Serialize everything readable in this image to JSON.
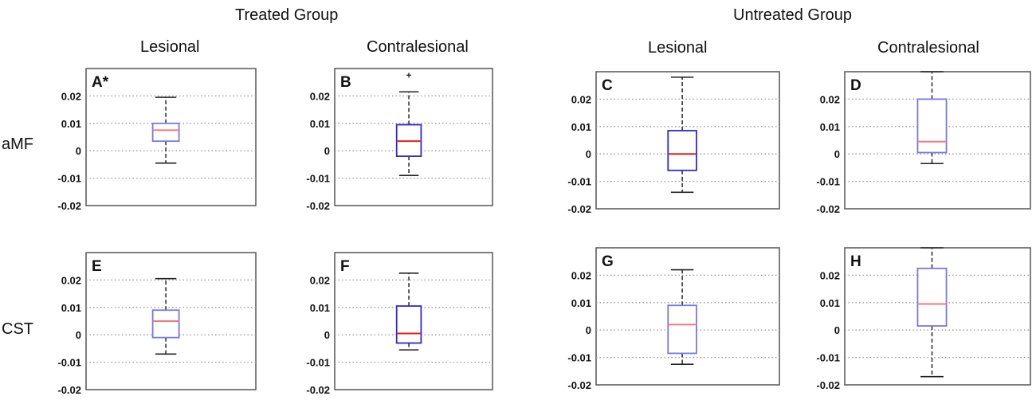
{
  "headers": {
    "treated_group": "Treated Group",
    "untreated_group": "Untreated Group",
    "treated_lesional": "Lesional",
    "treated_contralesional": "Contralesional",
    "untreated_lesional": "Lesional",
    "untreated_contralesional": "Contralesional"
  },
  "rows": {
    "amf": "aMF",
    "cst": "CST"
  },
  "colors": {
    "box_edge": "#2a2ad6",
    "median": "#e02020",
    "whisker": "#333333",
    "grid": "#999999",
    "frame": "#555555"
  },
  "chart_data": [
    {
      "panel": "A*",
      "group": "Treated",
      "side": "Lesional",
      "region": "aMF",
      "type": "box",
      "ylim": [
        -0.02,
        0.03
      ],
      "yticks": [
        -0.02,
        -0.01,
        0,
        0.01,
        0.02
      ],
      "ytick_labels": [
        "-0.02",
        "-0.01",
        "0",
        "0.01",
        "0.02"
      ],
      "whisker_low": -0.0045,
      "q1": 0.0035,
      "median": 0.0075,
      "q3": 0.01,
      "whisker_high": 0.0195,
      "outliers": [],
      "style": "light"
    },
    {
      "panel": "B",
      "group": "Treated",
      "side": "Contralesional",
      "region": "aMF",
      "type": "box",
      "ylim": [
        -0.02,
        0.03
      ],
      "yticks": [
        -0.02,
        -0.01,
        0,
        0.01,
        0.02
      ],
      "ytick_labels": [
        "-0.02",
        "-0.01",
        "0",
        "0.01",
        "0.02"
      ],
      "whisker_low": -0.009,
      "q1": -0.002,
      "median": 0.0035,
      "q3": 0.0095,
      "whisker_high": 0.0215,
      "outliers": [
        0.0275
      ],
      "style": "normal"
    },
    {
      "panel": "C",
      "group": "Untreated",
      "side": "Lesional",
      "region": "aMF",
      "type": "box",
      "ylim": [
        -0.02,
        0.03
      ],
      "yticks": [
        -0.02,
        -0.01,
        0,
        0.01,
        0.02
      ],
      "ytick_labels": [
        "-0.02",
        "-0.01",
        "0",
        "0.01",
        "0.02"
      ],
      "whisker_low": -0.014,
      "q1": -0.006,
      "median": 0.0,
      "q3": 0.0085,
      "whisker_high": 0.028,
      "outliers": [],
      "style": "normal"
    },
    {
      "panel": "D",
      "group": "Untreated",
      "side": "Contralesional",
      "region": "aMF",
      "type": "box",
      "ylim": [
        -0.02,
        0.03
      ],
      "yticks": [
        -0.02,
        -0.01,
        0,
        0.01,
        0.02
      ],
      "ytick_labels": [
        "-0.02",
        "-0.01",
        "0",
        "0.01",
        "0.02"
      ],
      "whisker_low": -0.0035,
      "q1": 0.0005,
      "median": 0.0045,
      "q3": 0.02,
      "whisker_high": 0.03,
      "outliers": [],
      "style": "light"
    },
    {
      "panel": "E",
      "group": "Treated",
      "side": "Lesional",
      "region": "CST",
      "type": "box",
      "ylim": [
        -0.02,
        0.03
      ],
      "yticks": [
        -0.02,
        -0.01,
        0,
        0.01,
        0.02
      ],
      "ytick_labels": [
        "-0.02",
        "-0.01",
        "0",
        "0.01",
        "0.02"
      ],
      "whisker_low": -0.007,
      "q1": -0.001,
      "median": 0.005,
      "q3": 0.009,
      "whisker_high": 0.0205,
      "outliers": [],
      "style": "light"
    },
    {
      "panel": "F",
      "group": "Treated",
      "side": "Contralesional",
      "region": "CST",
      "type": "box",
      "ylim": [
        -0.02,
        0.03
      ],
      "yticks": [
        -0.02,
        -0.01,
        0,
        0.01,
        0.02
      ],
      "ytick_labels": [
        "-0.02",
        "-0.01",
        "0",
        "0.01",
        "0.02"
      ],
      "whisker_low": -0.0055,
      "q1": -0.003,
      "median": 0.0005,
      "q3": 0.0105,
      "whisker_high": 0.0225,
      "outliers": [],
      "style": "normal"
    },
    {
      "panel": "G",
      "group": "Untreated",
      "side": "Lesional",
      "region": "CST",
      "type": "box",
      "ylim": [
        -0.02,
        0.03
      ],
      "yticks": [
        -0.02,
        -0.01,
        0,
        0.01,
        0.02
      ],
      "ytick_labels": [
        "-0.02",
        "-0.01",
        "0",
        "0.01",
        "0.02"
      ],
      "whisker_low": -0.0125,
      "q1": -0.0085,
      "median": 0.002,
      "q3": 0.009,
      "whisker_high": 0.022,
      "outliers": [],
      "style": "light"
    },
    {
      "panel": "H",
      "group": "Untreated",
      "side": "Contralesional",
      "region": "CST",
      "type": "box",
      "ylim": [
        -0.02,
        0.03
      ],
      "yticks": [
        -0.02,
        -0.01,
        0,
        0.01,
        0.02
      ],
      "ytick_labels": [
        "-0.02",
        "-0.01",
        "0",
        "0.01",
        "0.02"
      ],
      "whisker_low": -0.017,
      "q1": 0.0015,
      "median": 0.0095,
      "q3": 0.0225,
      "whisker_high": 0.03,
      "outliers": [],
      "style": "light"
    }
  ]
}
